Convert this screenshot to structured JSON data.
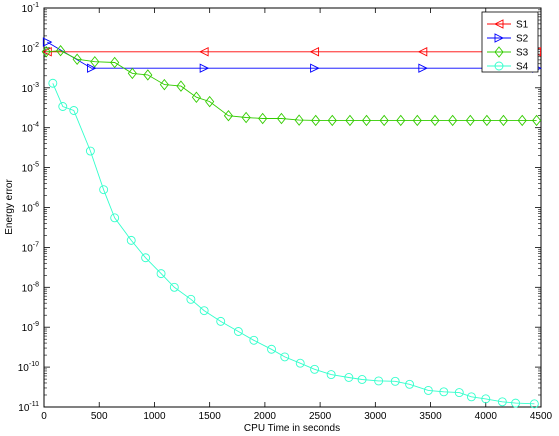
{
  "chart_data": {
    "type": "line",
    "xlabel": "CPU Time in seconds",
    "ylabel": "Energy error",
    "xlim": [
      0,
      4500
    ],
    "ylim_exponents": [
      -11,
      -1
    ],
    "yscale": "log",
    "x_ticks": [
      "0",
      "500",
      "1000",
      "1500",
      "2000",
      "2500",
      "3000",
      "3500",
      "4000",
      "4500"
    ],
    "x_tick_values": [
      0,
      500,
      1000,
      1500,
      2000,
      2500,
      3000,
      3500,
      4000,
      4500
    ],
    "y_tick_exponents": [
      "-11",
      "-10",
      "-9",
      "-8",
      "-7",
      "-6",
      "-5",
      "-4",
      "-3",
      "-2",
      "-1"
    ],
    "y_tick_base": "10",
    "grid": false,
    "legend_position": "top-right",
    "series": [
      {
        "name": "S1",
        "color": "#ff0000",
        "marker": "triangle-left",
        "x": [
          30,
          1450,
          2450,
          3430,
          4460
        ],
        "y": [
          0.008,
          0.008,
          0.008,
          0.008,
          0.008
        ]
      },
      {
        "name": "S2",
        "color": "#0000ff",
        "marker": "triangle-right",
        "x": [
          30,
          430,
          1450,
          2450,
          3430,
          4460
        ],
        "y": [
          0.014,
          0.0031,
          0.0031,
          0.0031,
          0.0031,
          0.0031
        ]
      },
      {
        "name": "S3",
        "color": "#33cc00",
        "marker": "diamond",
        "x": [
          20,
          150,
          300,
          460,
          640,
          800,
          940,
          1090,
          1240,
          1380,
          1500,
          1670,
          1830,
          1980,
          2150,
          2310,
          2460,
          2610,
          2770,
          2920,
          3080,
          3230,
          3380,
          3540,
          3700,
          3860,
          4010,
          4160,
          4330,
          4460
        ],
        "y": [
          0.008,
          0.0085,
          0.0052,
          0.0045,
          0.0043,
          0.0023,
          0.0021,
          0.0012,
          0.0011,
          0.00058,
          0.00045,
          0.0002,
          0.00018,
          0.00017,
          0.00017,
          0.000155,
          0.000152,
          0.000152,
          0.000152,
          0.000152,
          0.000152,
          0.000152,
          0.000152,
          0.000152,
          0.000152,
          0.000152,
          0.000152,
          0.000152,
          0.000152,
          0.000152
        ]
      },
      {
        "name": "S4",
        "color": "#33ffcc",
        "marker": "circle",
        "x": [
          80,
          170,
          270,
          420,
          540,
          640,
          790,
          920,
          1060,
          1180,
          1330,
          1450,
          1600,
          1760,
          1900,
          2060,
          2180,
          2320,
          2450,
          2600,
          2760,
          2880,
          3030,
          3180,
          3310,
          3480,
          3620,
          3760,
          3870,
          4000,
          4150,
          4270,
          4440
        ],
        "y": [
          0.0013,
          0.00034,
          0.00027,
          2.6e-05,
          2.8e-06,
          5.5e-07,
          1.5e-07,
          5.5e-08,
          2.2e-08,
          1e-08,
          5e-09,
          2.6e-09,
          1.4e-09,
          7.8e-10,
          4.7e-10,
          2.8e-10,
          1.8e-10,
          1.25e-10,
          8.8e-11,
          6.5e-11,
          5.5e-11,
          4.9e-11,
          4.5e-11,
          4.4e-11,
          3.7e-11,
          2.6e-11,
          2.4e-11,
          2.3e-11,
          1.8e-11,
          1.6e-11,
          1.35e-11,
          1.25e-11,
          1.2e-11
        ]
      }
    ]
  }
}
